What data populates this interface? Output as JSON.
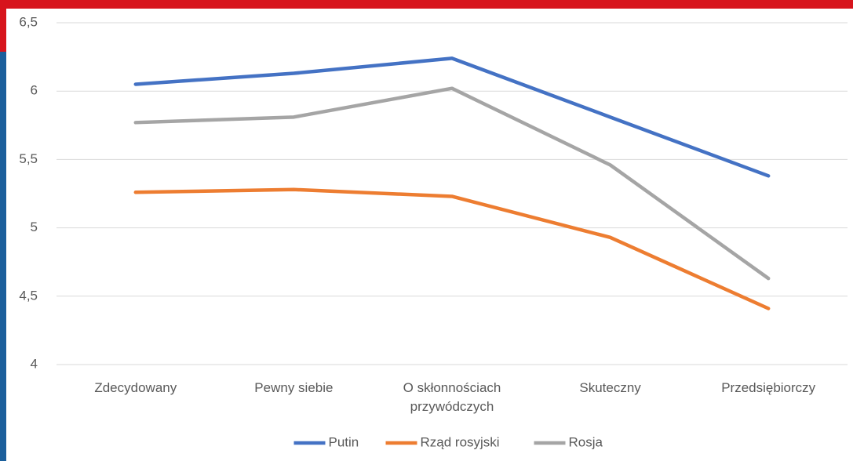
{
  "chart_data": {
    "type": "line",
    "categories": [
      "Zdecydowany",
      "Pewny siebie",
      "O skłonnościach przywódczych",
      "Skuteczny",
      "Przedsiębiorczy"
    ],
    "series": [
      {
        "name": "Putin",
        "color": "#4472c4",
        "values": [
          6.05,
          6.13,
          6.24,
          5.81,
          5.38
        ]
      },
      {
        "name": "Rząd rosyjski",
        "color": "#ed7d31",
        "values": [
          5.26,
          5.28,
          5.23,
          4.93,
          4.41
        ]
      },
      {
        "name": "Rosja",
        "color": "#a5a5a5",
        "values": [
          5.77,
          5.81,
          6.02,
          5.46,
          4.63
        ]
      }
    ],
    "ylim": [
      4,
      6.5
    ],
    "yticks": [
      4,
      {
        "value": 4.5,
        "label": "4,5"
      },
      5,
      {
        "value": 5.5,
        "label": "5,5"
      },
      6,
      {
        "value": 6.5,
        "label": "6,5"
      }
    ],
    "grid": true,
    "legend": "bottom"
  }
}
